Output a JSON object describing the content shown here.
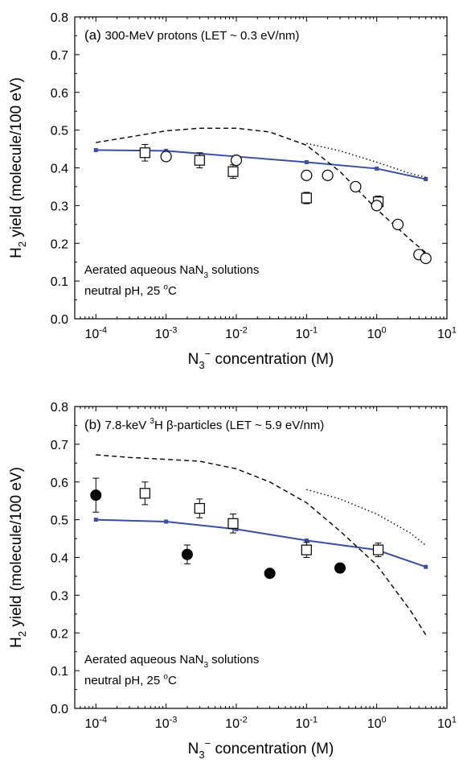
{
  "chart_data": [
    {
      "type": "scatter",
      "panel": "(a)",
      "title_parts": [
        "300-MeV protons (LET ~ 0.3 eV/nm)"
      ],
      "title_rich": [
        {
          "t": "(a) ",
          "size": 17
        },
        {
          "t": "300-MeV protons (LET ~ 0.3 eV/nm)",
          "size": 15
        }
      ],
      "annotation_lines": [
        [
          {
            "t": "Aerated aqueous NaN"
          },
          {
            "t": "3",
            "sub": true
          },
          {
            "t": " solutions"
          }
        ],
        [
          {
            "t": "neutral pH, 25 "
          },
          {
            "t": "o",
            "sup": true
          },
          {
            "t": "C"
          }
        ]
      ],
      "ylabel_parts": [
        {
          "t": "H"
        },
        {
          "t": "2",
          "sub": true
        },
        {
          "t": " yield (molecule/100 eV)"
        }
      ],
      "xlabel_parts": [
        {
          "t": "N"
        },
        {
          "t": "3",
          "sub": true
        },
        {
          "t": "−",
          "sup": true
        },
        {
          "t": " concentration (M)"
        }
      ],
      "x_scale": "log",
      "xlim": [
        5e-05,
        10
      ],
      "ylim": [
        0.0,
        0.8
      ],
      "x_ticks": [
        {
          "value": 0.0001,
          "base": "10",
          "exp": "-4"
        },
        {
          "value": 0.001,
          "base": "10",
          "exp": "-3"
        },
        {
          "value": 0.01,
          "base": "10",
          "exp": "-2"
        },
        {
          "value": 0.1,
          "base": "10",
          "exp": "-1"
        },
        {
          "value": 1,
          "base": "10",
          "exp": "0"
        },
        {
          "value": 10,
          "base": "10",
          "exp": "1"
        }
      ],
      "y_ticks": [
        "0.0",
        "0.1",
        "0.2",
        "0.3",
        "0.4",
        "0.5",
        "0.6",
        "0.7",
        "0.8"
      ],
      "series": [
        {
          "style": "line-markers",
          "color": "#3a4fa0",
          "x": [
            0.0001,
            0.001,
            0.01,
            0.1,
            1,
            5
          ],
          "y": [
            0.447,
            0.445,
            0.43,
            0.415,
            0.398,
            0.37
          ]
        },
        {
          "style": "dashed",
          "color": "#000000",
          "x": [
            0.0001,
            0.001,
            0.003,
            0.01,
            0.03,
            0.1,
            0.3,
            1,
            3,
            5
          ],
          "y": [
            0.467,
            0.498,
            0.505,
            0.505,
            0.495,
            0.46,
            0.39,
            0.29,
            0.21,
            0.175
          ]
        },
        {
          "style": "dotted",
          "color": "#000000",
          "x": [
            0.1,
            0.3,
            1,
            3,
            5
          ],
          "y": [
            0.465,
            0.445,
            0.415,
            0.385,
            0.375
          ]
        },
        {
          "style": "open-square",
          "color": "#000000",
          "x": [
            0.0005,
            0.003,
            0.009,
            0.1,
            1.05
          ],
          "y": [
            0.44,
            0.42,
            0.39,
            0.32,
            0.31
          ],
          "err": [
            0.022,
            0.02,
            0.018,
            0.015,
            0.015
          ]
        },
        {
          "style": "open-circle",
          "color": "#000000",
          "x": [
            0.001,
            0.01,
            0.1,
            0.2,
            0.5,
            1,
            2,
            4,
            5
          ],
          "y": [
            0.43,
            0.42,
            0.38,
            0.38,
            0.35,
            0.3,
            0.25,
            0.17,
            0.16
          ]
        }
      ]
    },
    {
      "type": "scatter",
      "panel": "(b)",
      "title_parts": [
        "7.8-keV",
        "3",
        "H β-particles (LET ~ 5.9 eV/nm)"
      ],
      "title_rich": [
        {
          "t": "(b) ",
          "size": 17
        },
        {
          "t": "7.8-keV ",
          "size": 15
        },
        {
          "t": "3",
          "size": 10,
          "sup": true
        },
        {
          "t": "H β-particles (LET ~ 5.9 eV/nm)",
          "size": 15
        }
      ],
      "annotation_lines": [
        [
          {
            "t": "Aerated aqueous NaN"
          },
          {
            "t": "3",
            "sub": true
          },
          {
            "t": " solutions"
          }
        ],
        [
          {
            "t": "neutral pH, 25 "
          },
          {
            "t": "o",
            "sup": true
          },
          {
            "t": "C"
          }
        ]
      ],
      "ylabel_parts": [
        {
          "t": "H"
        },
        {
          "t": "2",
          "sub": true
        },
        {
          "t": " yield (molecule/100 eV)"
        }
      ],
      "xlabel_parts": [
        {
          "t": "N"
        },
        {
          "t": "3",
          "sub": true
        },
        {
          "t": "−",
          "sup": true
        },
        {
          "t": " concentration (M)"
        }
      ],
      "x_scale": "log",
      "xlim": [
        5e-05,
        10
      ],
      "ylim": [
        0.0,
        0.8
      ],
      "x_ticks": [
        {
          "value": 0.0001,
          "base": "10",
          "exp": "-4"
        },
        {
          "value": 0.001,
          "base": "10",
          "exp": "-3"
        },
        {
          "value": 0.01,
          "base": "10",
          "exp": "-2"
        },
        {
          "value": 0.1,
          "base": "10",
          "exp": "-1"
        },
        {
          "value": 1,
          "base": "10",
          "exp": "0"
        },
        {
          "value": 10,
          "base": "10",
          "exp": "1"
        }
      ],
      "y_ticks": [
        "0.0",
        "0.1",
        "0.2",
        "0.3",
        "0.4",
        "0.5",
        "0.6",
        "0.7",
        "0.8"
      ],
      "series": [
        {
          "style": "line-markers",
          "color": "#3a4fa0",
          "x": [
            0.0001,
            0.001,
            0.01,
            0.1,
            1,
            5
          ],
          "y": [
            0.5,
            0.495,
            0.475,
            0.445,
            0.42,
            0.375
          ]
        },
        {
          "style": "dashed",
          "color": "#000000",
          "x": [
            0.0001,
            0.0003,
            0.001,
            0.003,
            0.01,
            0.03,
            0.1,
            0.3,
            1,
            3,
            5
          ],
          "y": [
            0.672,
            0.665,
            0.66,
            0.655,
            0.635,
            0.6,
            0.545,
            0.47,
            0.38,
            0.26,
            0.195
          ]
        },
        {
          "style": "dotted",
          "color": "#000000",
          "x": [
            0.1,
            0.3,
            1,
            3,
            5
          ],
          "y": [
            0.58,
            0.555,
            0.515,
            0.465,
            0.432
          ]
        },
        {
          "style": "open-square",
          "color": "#000000",
          "x": [
            0.0005,
            0.003,
            0.009,
            0.1,
            1.05
          ],
          "y": [
            0.57,
            0.53,
            0.49,
            0.42,
            0.42
          ],
          "err": [
            0.03,
            0.025,
            0.025,
            0.02,
            0.018
          ]
        },
        {
          "style": "filled-circle",
          "color": "#000000",
          "x": [
            0.0001,
            0.002,
            0.03,
            0.3
          ],
          "y": [
            0.565,
            0.408,
            0.358,
            0.372
          ],
          "err": [
            0.045,
            0.025,
            0.01,
            0.008
          ]
        }
      ]
    }
  ]
}
